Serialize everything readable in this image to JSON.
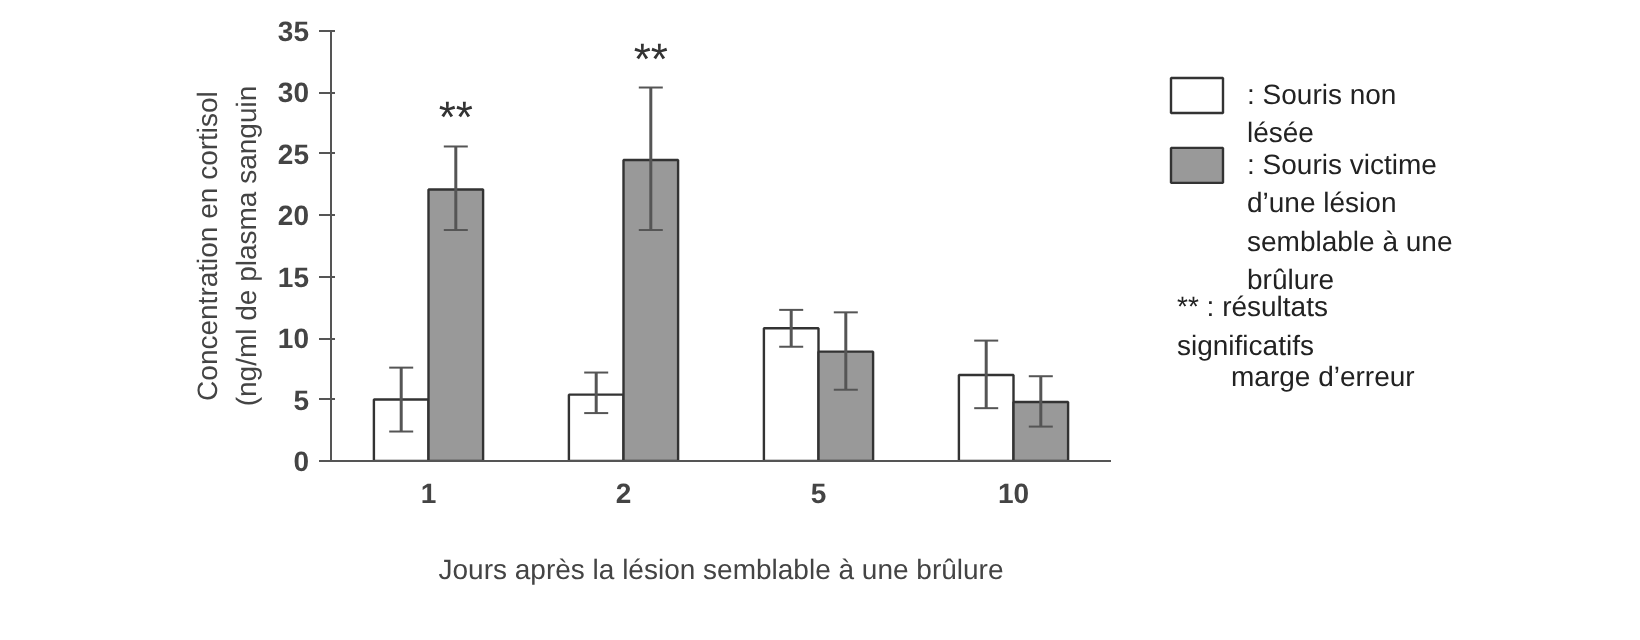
{
  "chart_data": {
    "type": "bar",
    "xlabel": "Jours après la lésion semblable à une brûlure",
    "ylabel": "Concentration en cortisol (ng/ml de plasma sanguin",
    "categories": [
      "1",
      "2",
      "5",
      "10"
    ],
    "series": [
      {
        "name": ": Souris non lésée",
        "color": "#ffffff",
        "values": [
          5.0,
          5.4,
          10.8,
          7.0
        ],
        "errors": [
          [
            2.4,
            7.6
          ],
          [
            3.9,
            7.2
          ],
          [
            9.3,
            12.3
          ],
          [
            4.3,
            9.8
          ]
        ]
      },
      {
        "name": ": Souris victime d’une lésion semblable à une brûlure",
        "color": "#999999",
        "values": [
          22.1,
          24.5,
          8.9,
          4.8
        ],
        "errors": [
          [
            18.8,
            25.6
          ],
          [
            18.8,
            30.4
          ],
          [
            5.8,
            12.1
          ],
          [
            2.8,
            6.9
          ]
        ]
      }
    ],
    "ylim": [
      0,
      35
    ],
    "yticks": [
      0,
      5,
      10,
      15,
      20,
      25,
      30,
      35
    ],
    "grid": false,
    "legend": "right",
    "annotations": [
      {
        "text": "**",
        "x": "1",
        "y": 22.1
      },
      {
        "text": "**",
        "x": "2",
        "y": 24.5
      },
      "** : résultats significatifs",
      "marge d’erreur"
    ]
  }
}
